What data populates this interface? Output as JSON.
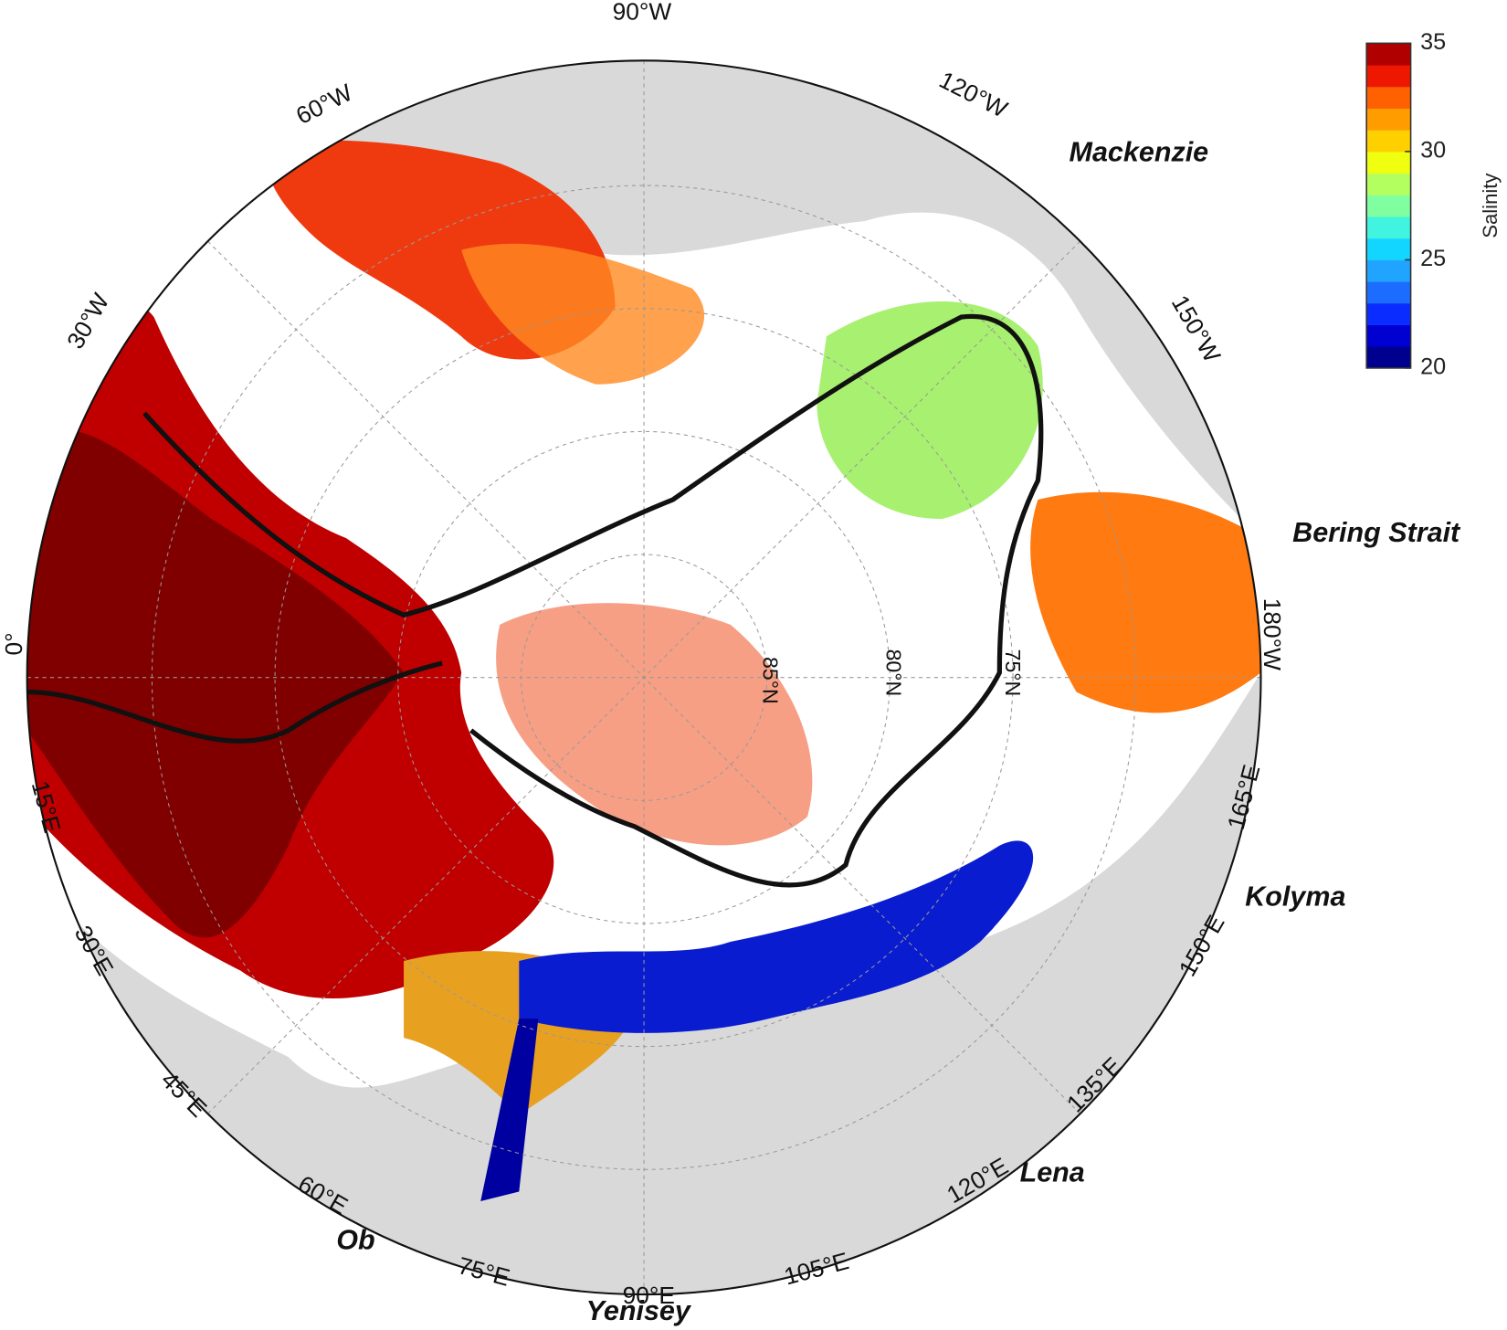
{
  "map": {
    "longitude_labels": [
      "90°W",
      "60°W",
      "120°W",
      "30°W",
      "150°W",
      "0°",
      "180°W",
      "15°E",
      "165°E",
      "30°E",
      "150°E",
      "45°E",
      "135°E",
      "60°E",
      "120°E",
      "75°E",
      "105°E",
      "90°E"
    ],
    "latitude_labels": [
      "85°N",
      "80°N",
      "75°N"
    ],
    "river_labels": [
      "Mackenzie",
      "Bering Strait",
      "Kolyma",
      "Lena",
      "Ob",
      "Yenisey"
    ]
  },
  "colorbar": {
    "label": "Salinity",
    "lim": [
      20,
      35
    ],
    "ticks": [
      20,
      25,
      30,
      35
    ],
    "colors": [
      "#00008f",
      "#0000d0",
      "#0a2cff",
      "#1c6cff",
      "#20a4ff",
      "#12d6ff",
      "#40f4e0",
      "#80ffa0",
      "#b4ff60",
      "#f0ff10",
      "#ffd000",
      "#ff9c00",
      "#ff6000",
      "#ee1800",
      "#b00000"
    ]
  }
}
